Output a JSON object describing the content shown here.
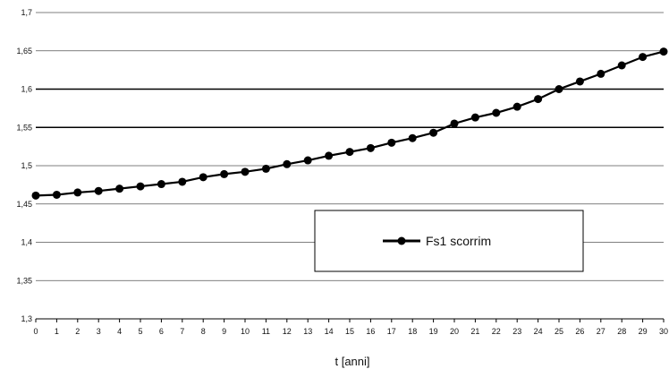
{
  "chart_data": {
    "type": "line",
    "xlabel": "t [anni]",
    "ylabel": "",
    "xlim": [
      0,
      30
    ],
    "ylim": [
      1.3,
      1.7
    ],
    "y_ticks": [
      1.3,
      1.35,
      1.4,
      1.45,
      1.5,
      1.55,
      1.6,
      1.65,
      1.7
    ],
    "y_tick_labels": [
      "1,3",
      "1,35",
      "1,4",
      "1,45",
      "1,5",
      "1,55",
      "1,6",
      "1,65",
      "1,7"
    ],
    "x": [
      0,
      1,
      2,
      3,
      4,
      5,
      6,
      7,
      8,
      9,
      10,
      11,
      12,
      13,
      14,
      15,
      16,
      17,
      18,
      19,
      20,
      21,
      22,
      23,
      24,
      25,
      26,
      27,
      28,
      29,
      30
    ],
    "series": [
      {
        "name": "Fs1 scorrim",
        "color": "#000000",
        "marker": "circle",
        "values": [
          1.461,
          1.462,
          1.465,
          1.467,
          1.47,
          1.473,
          1.476,
          1.479,
          1.485,
          1.489,
          1.492,
          1.496,
          1.502,
          1.507,
          1.513,
          1.518,
          1.523,
          1.53,
          1.536,
          1.543,
          1.555,
          1.563,
          1.569,
          1.577,
          1.587,
          1.6,
          1.61,
          1.62,
          1.631,
          1.642,
          1.649
        ]
      }
    ],
    "grid": true,
    "legend_position": "center-right"
  }
}
